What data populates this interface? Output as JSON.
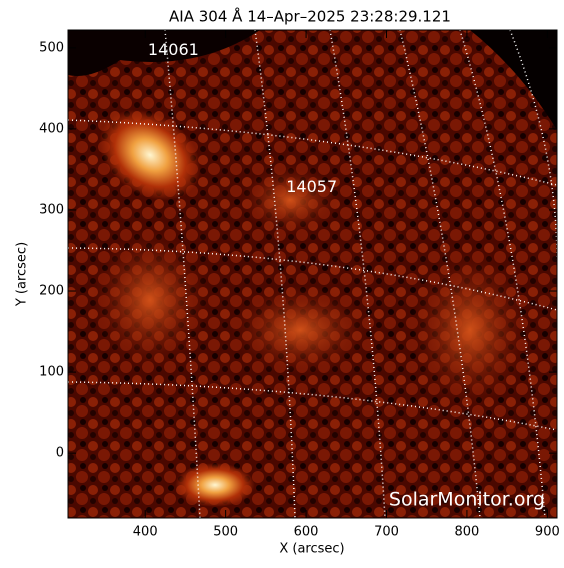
{
  "chart_data": {
    "type": "image",
    "title": "AIA 304 Å 14–Apr–2025 23:28:29.121",
    "x_label": "X (arcsec)",
    "y_label": "Y (arcsec)",
    "xlim": [
      304,
      912
    ],
    "ylim": [
      -80,
      522
    ],
    "xticks": [
      400,
      500,
      600,
      700,
      800,
      900
    ],
    "yticks": [
      0,
      100,
      200,
      300,
      400,
      500
    ],
    "annotations": [
      {
        "text": "14061",
        "x": 435,
        "y": 497
      },
      {
        "text": "14057",
        "x": 607,
        "y": 328
      }
    ],
    "watermark": "SolarMonitor.org"
  }
}
